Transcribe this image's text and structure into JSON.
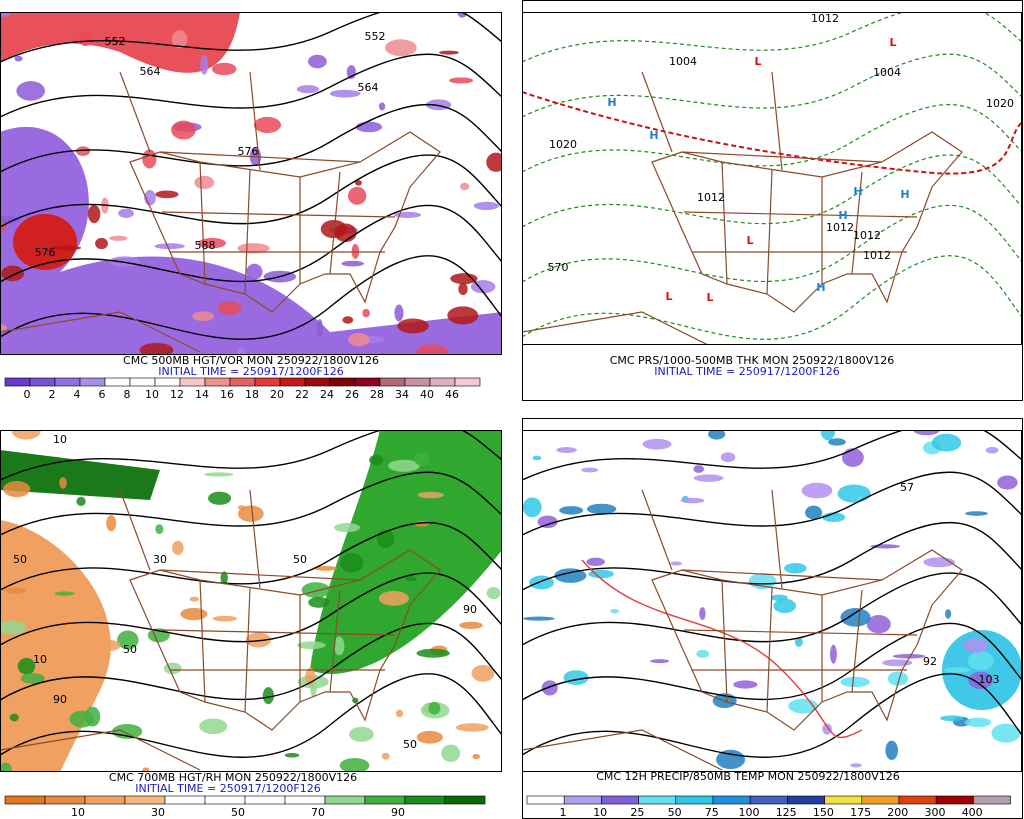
{
  "panels": [
    {
      "caption": "CMC 500MB HGT/VOR MON 250922/1800V126",
      "initial_time": "INITIAL TIME = 250917/1200F126",
      "colorbar_labels": [
        0,
        2,
        4,
        6,
        8,
        10,
        12,
        14,
        16,
        18,
        20,
        22,
        24,
        26,
        28,
        34,
        40,
        46
      ],
      "map_labels": [
        "552",
        "564",
        "576",
        "588",
        "576",
        "552",
        "564"
      ]
    },
    {
      "caption": "CMC PRS/1000-500MB THK MON 250922/1800V126",
      "initial_time": "INITIAL TIME = 250917/1200F126",
      "map_labels": [
        "1012",
        "1004",
        "1004",
        "1020",
        "1020",
        "1012",
        "1012",
        "1012",
        "1012",
        "570",
        "H",
        "H",
        "H",
        "H",
        "H",
        "H",
        "L",
        "L",
        "L",
        "L",
        "L",
        "L"
      ]
    },
    {
      "caption": "CMC 700MB HGT/RH MON 250922/1800V126",
      "initial_time": "INITIAL TIME = 250917/1200F126",
      "colorbar_labels": [
        10,
        30,
        50,
        70,
        90
      ],
      "map_labels": [
        "10",
        "50",
        "90",
        "50",
        "30",
        "50",
        "90",
        "10",
        "50"
      ]
    },
    {
      "caption": "CMC 12H PRECIP/850MB TEMP MON 250922/1800V126",
      "colorbar_labels": [
        1,
        10,
        25,
        50,
        75,
        100,
        125,
        150,
        175,
        200,
        300,
        400
      ],
      "map_labels": [
        "103",
        "92",
        "57"
      ]
    }
  ]
}
